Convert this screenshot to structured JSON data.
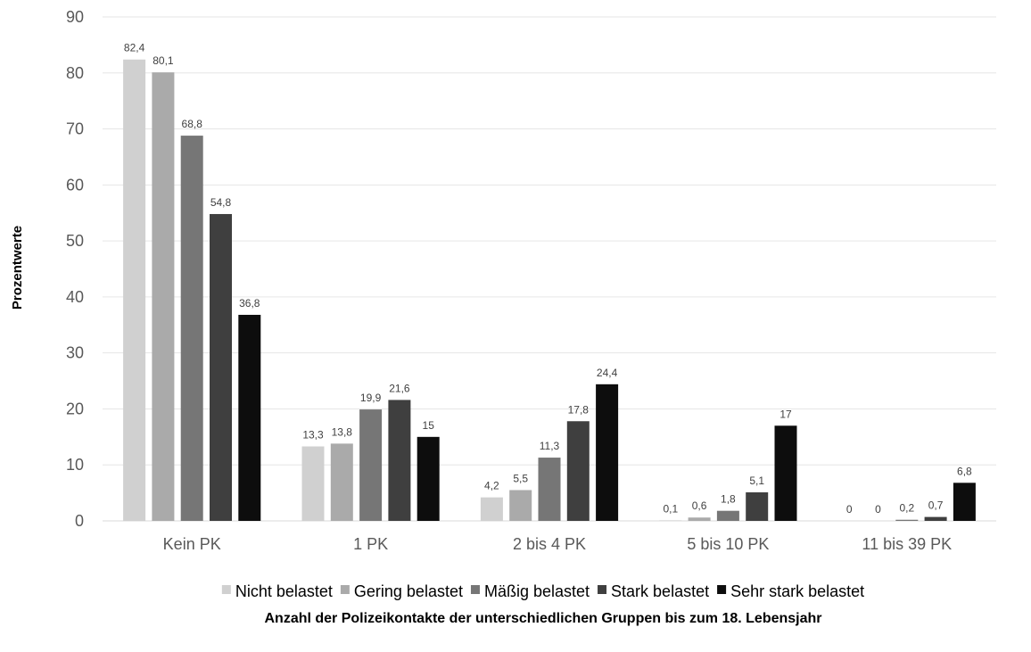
{
  "chart_data": {
    "type": "bar",
    "ylabel": "Prozentwerte",
    "xlabel": "Anzahl der Polizeikontakte der unterschiedlichen Gruppen bis zum 18. Lebensjahr",
    "ylim": [
      0,
      90
    ],
    "yticks": [
      0,
      10,
      20,
      30,
      40,
      50,
      60,
      70,
      80,
      90
    ],
    "grid": true,
    "legend_position": "bottom",
    "categories": [
      "Kein PK",
      "1 PK",
      "2 bis 4 PK",
      "5 bis 10 PK",
      "11 bis 39 PK"
    ],
    "series": [
      {
        "name": "Nicht belastet",
        "color": "#d0d0d0",
        "values": [
          82.4,
          13.3,
          4.2,
          0.1,
          0
        ],
        "labels": [
          "82,4",
          "13,3",
          "4,2",
          "0,1",
          "0"
        ]
      },
      {
        "name": "Gering belastet",
        "color": "#aaaaaa",
        "values": [
          80.1,
          13.8,
          5.5,
          0.6,
          0
        ],
        "labels": [
          "80,1",
          "13,8",
          "5,5",
          "0,6",
          "0"
        ]
      },
      {
        "name": "Mäßig belastet",
        "color": "#767676",
        "values": [
          68.8,
          19.9,
          11.3,
          1.8,
          0.2
        ],
        "labels": [
          "68,8",
          "19,9",
          "11,3",
          "1,8",
          "0,2"
        ]
      },
      {
        "name": "Stark belastet",
        "color": "#3f3f3f",
        "values": [
          54.8,
          21.6,
          17.8,
          5.1,
          0.7
        ],
        "labels": [
          "54,8",
          "21,6",
          "17,8",
          "5,1",
          "0,7"
        ]
      },
      {
        "name": "Sehr stark belastet",
        "color": "#0d0d0d",
        "values": [
          36.8,
          15,
          24.4,
          17,
          6.8
        ],
        "labels": [
          "36,8",
          "15",
          "24,4",
          "17",
          "6,8"
        ]
      }
    ]
  }
}
